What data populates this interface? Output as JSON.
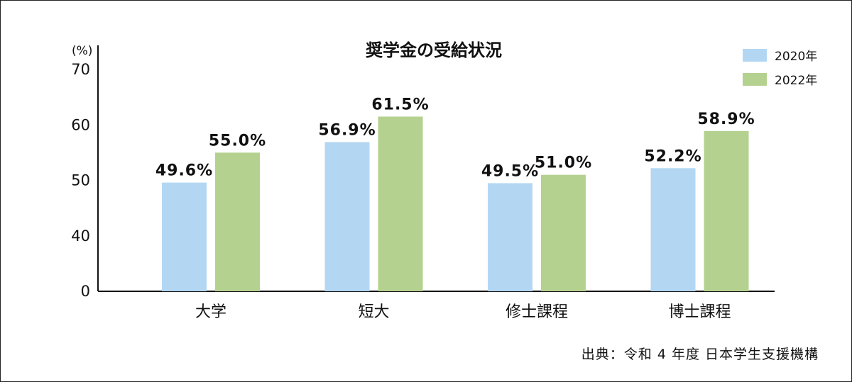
{
  "chart_data": {
    "type": "bar",
    "title": "奨学金の受給状況",
    "ylabel": "(%)",
    "categories": [
      "大学",
      "短大",
      "修士課程",
      "博士課程"
    ],
    "series": [
      {
        "name": "2020年",
        "values": [
          49.6,
          56.9,
          49.5,
          52.2
        ],
        "labels": [
          "49.6%",
          "56.9%",
          "49.5%",
          "52.2%"
        ],
        "color": "#b3d7f3"
      },
      {
        "name": "2022年",
        "values": [
          55.0,
          61.5,
          51.0,
          58.9
        ],
        "labels": [
          "55.0%",
          "61.5%",
          "51.0%",
          "58.9%"
        ],
        "color": "#b5d18f"
      }
    ],
    "y_ticks": [
      "70",
      "60",
      "50",
      "40",
      "0"
    ],
    "y_tick_values": [
      70,
      60,
      50,
      40,
      30
    ],
    "y_axis_break": true,
    "grid": false,
    "legend_position": "top-right"
  },
  "source": "出典：令和 4 年度 日本学生支援機構"
}
